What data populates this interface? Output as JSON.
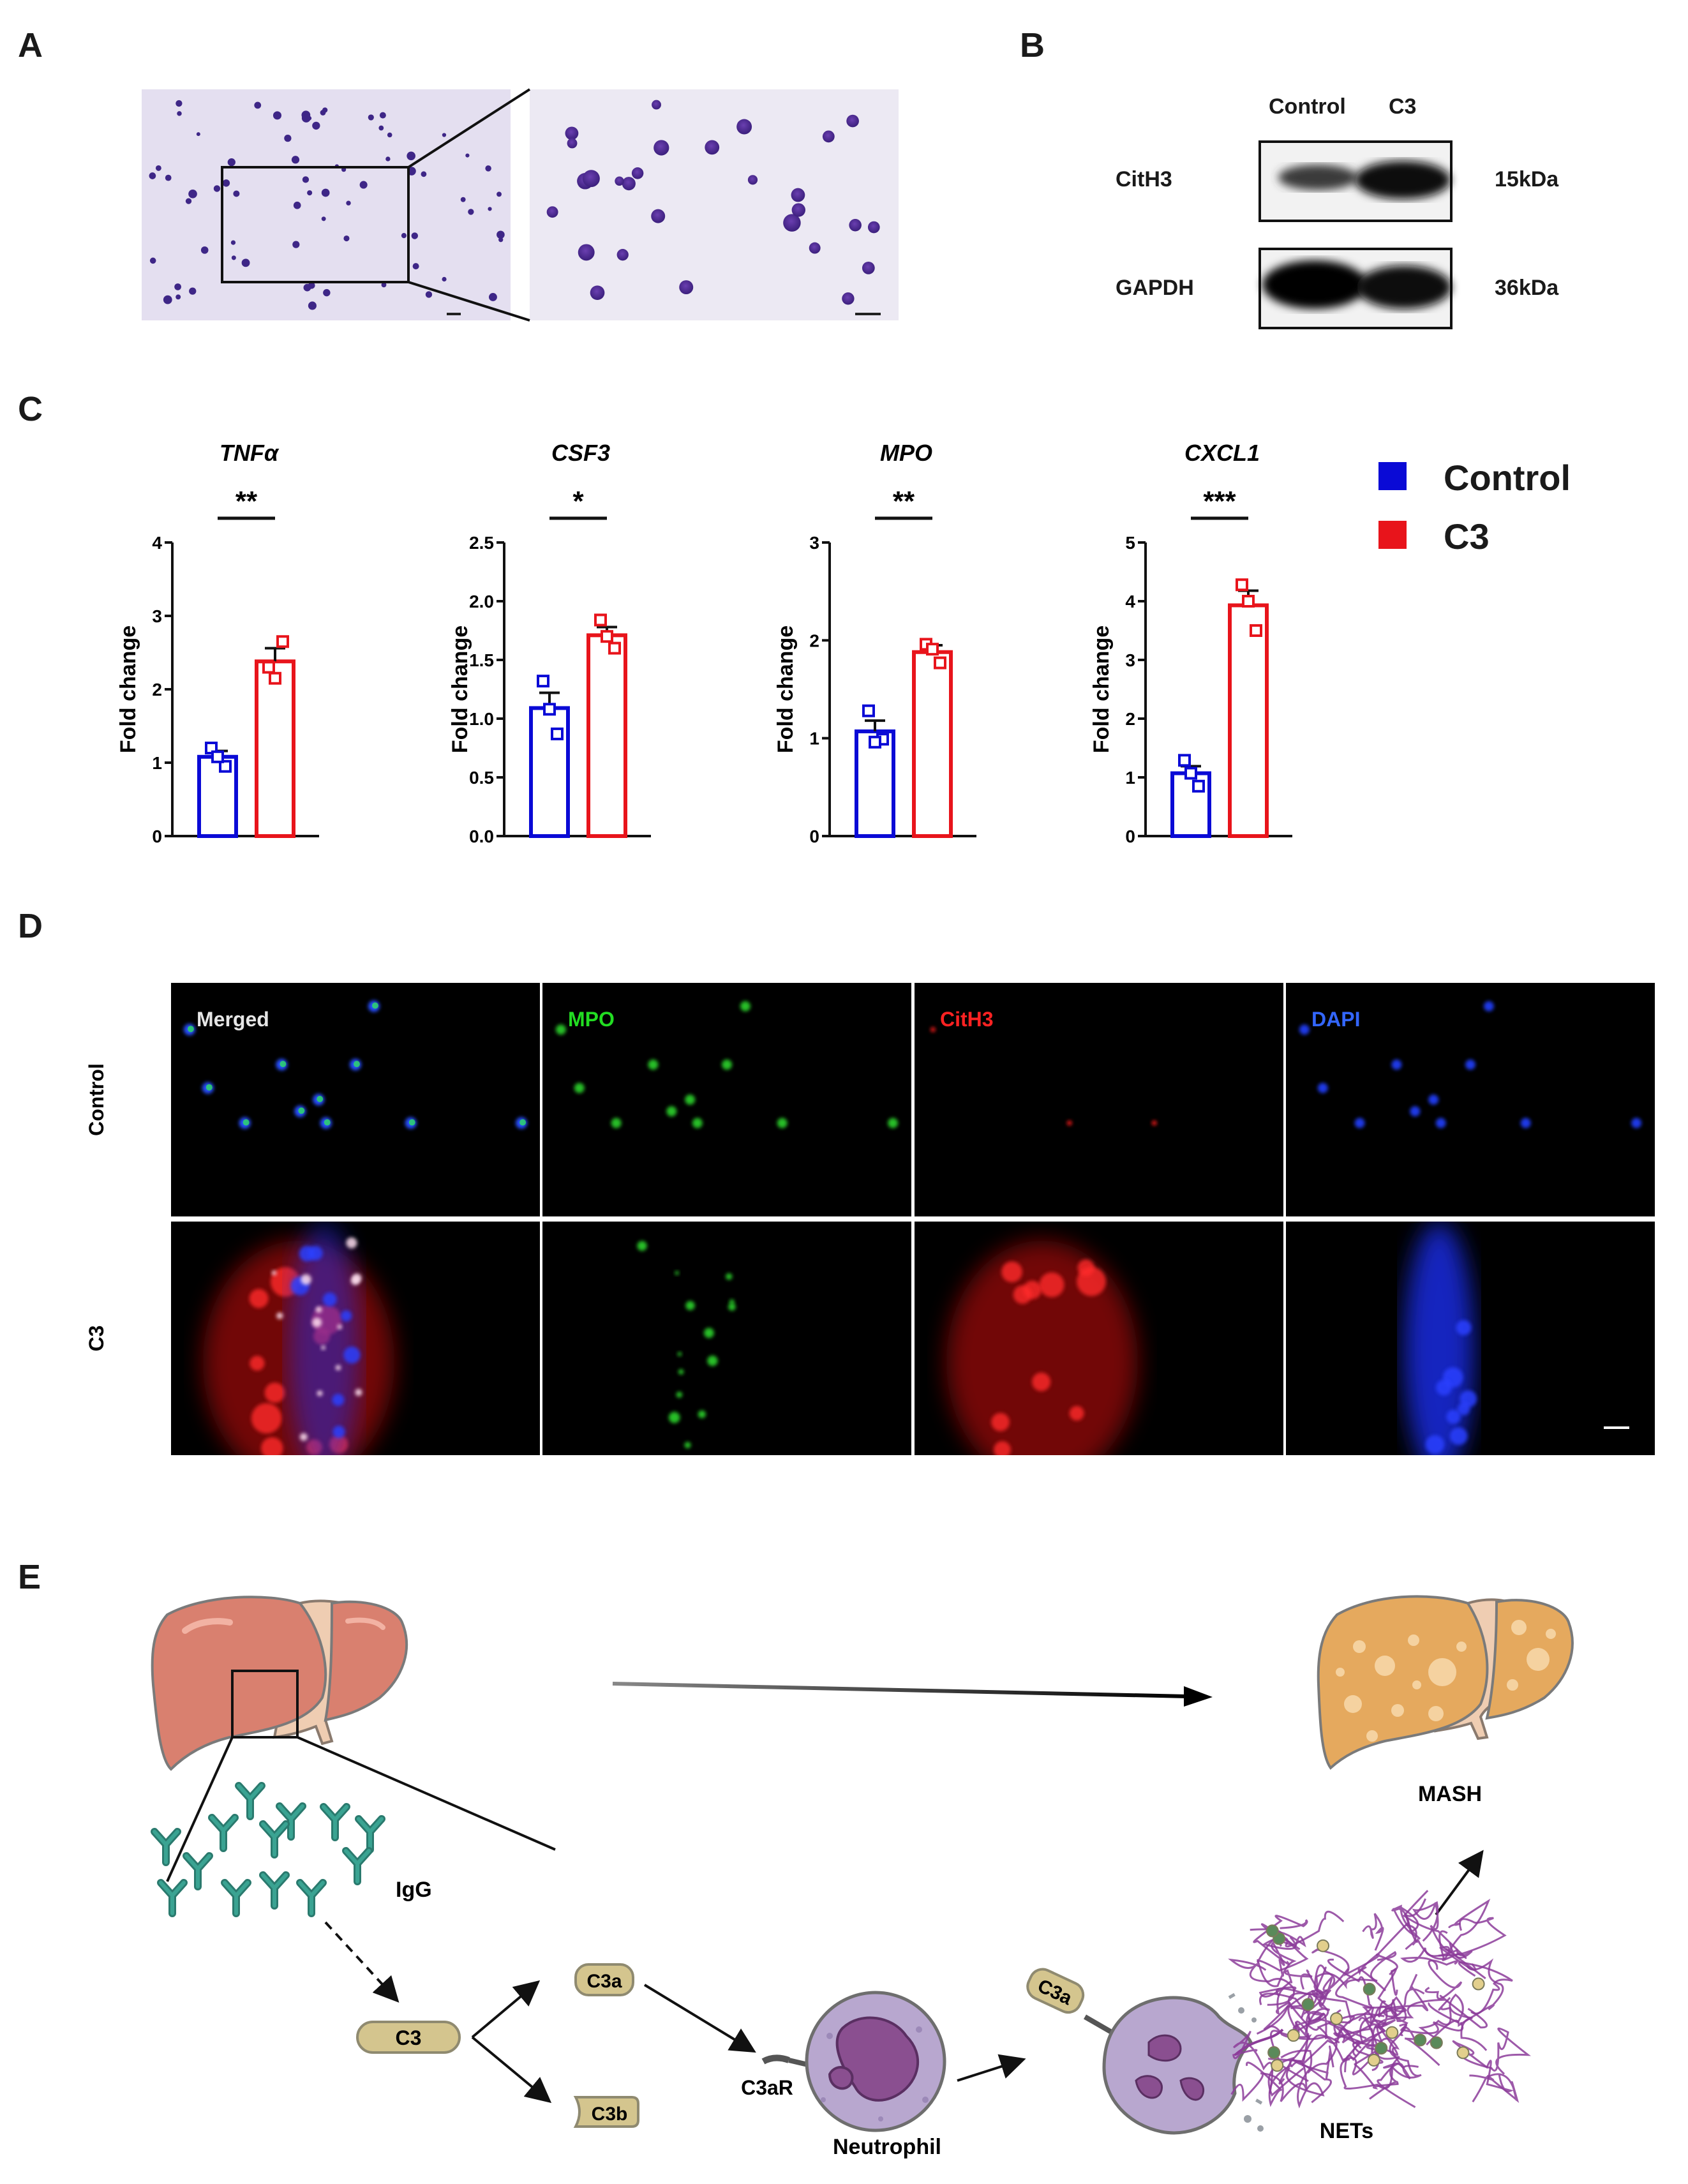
{
  "panels": {
    "a": "A",
    "b": "B",
    "c": "C",
    "d": "D",
    "e": "E"
  },
  "blot": {
    "col_control": "Control",
    "col_c3": "C3",
    "rows": [
      {
        "name": "CitH3",
        "size": "15kDa"
      },
      {
        "name": "GAPDH",
        "size": "36kDa"
      }
    ]
  },
  "legend": {
    "control": "Control",
    "c3": "C3",
    "control_color": "#0a0ad6",
    "c3_color": "#e8141b"
  },
  "chart_data": [
    {
      "type": "bar",
      "title": "TNFα",
      "ylabel": "Fold change",
      "categories": [
        "Control",
        "C3"
      ],
      "values": [
        1.08,
        2.38
      ],
      "errors": [
        0.08,
        0.18
      ],
      "points": [
        [
          1.2,
          0.95,
          1.08
        ],
        [
          2.3,
          2.65,
          2.15
        ]
      ],
      "ylim": [
        0,
        4
      ],
      "yticks": [
        "0",
        "1",
        "2",
        "3",
        "4"
      ],
      "sig": "**"
    },
    {
      "type": "bar",
      "title": "CSF3",
      "ylabel": "Fold change",
      "categories": [
        "Control",
        "C3"
      ],
      "values": [
        1.09,
        1.71
      ],
      "errors": [
        0.13,
        0.07
      ],
      "points": [
        [
          1.32,
          0.87,
          1.08
        ],
        [
          1.84,
          1.6,
          1.7
        ]
      ],
      "ylim": [
        0,
        2.5
      ],
      "yticks": [
        "0.0",
        "0.5",
        "1.0",
        "1.5",
        "2.0",
        "2.5"
      ],
      "sig": "*"
    },
    {
      "type": "bar",
      "title": "MPO",
      "ylabel": "Fold change",
      "categories": [
        "Control",
        "C3"
      ],
      "values": [
        1.07,
        1.88
      ],
      "errors": [
        0.11,
        0.07
      ],
      "points": [
        [
          1.28,
          0.99,
          0.96
        ],
        [
          1.96,
          1.77,
          1.91
        ]
      ],
      "ylim": [
        0,
        3
      ],
      "yticks": [
        "0",
        "1",
        "2",
        "3"
      ],
      "sig": "**"
    },
    {
      "type": "bar",
      "title": "CXCL1",
      "ylabel": "Fold change",
      "categories": [
        "Control",
        "C3"
      ],
      "values": [
        1.07,
        3.93
      ],
      "errors": [
        0.12,
        0.25
      ],
      "points": [
        [
          1.29,
          0.85,
          1.07
        ],
        [
          4.28,
          3.5,
          4.0
        ]
      ],
      "ylim": [
        0,
        5
      ],
      "yticks": [
        "0",
        "1",
        "2",
        "3",
        "4",
        "5"
      ],
      "sig": "***"
    }
  ],
  "if": {
    "rows": [
      "Control",
      "C3"
    ],
    "channels": [
      {
        "label": "Merged",
        "color": "#e6e6e6"
      },
      {
        "label": "MPO",
        "color": "#22dd22"
      },
      {
        "label": "CitH3",
        "color": "#ff2222"
      },
      {
        "label": "DAPI",
        "color": "#3366ff"
      }
    ]
  },
  "schematic": {
    "igg": "IgG",
    "c3": "C3",
    "c3a": "C3a",
    "c3b": "C3b",
    "c3ar": "C3aR",
    "neutrophil": "Neutrophil",
    "c3a_bound": "C3a",
    "nets": "NETs",
    "mash": "MASH"
  }
}
